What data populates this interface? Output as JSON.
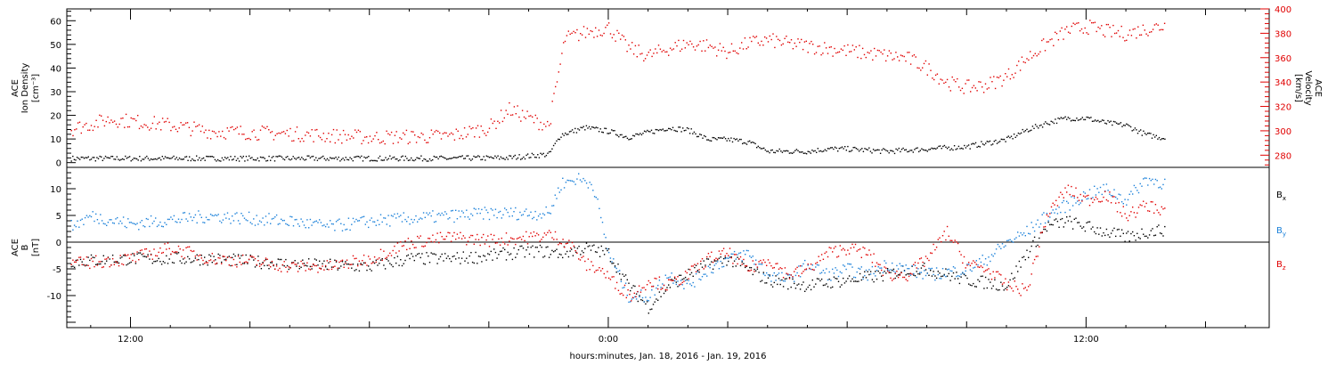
{
  "chart_data": [
    {
      "type": "scatter",
      "panel": "top",
      "ylabel_lines": [
        "ACE",
        "Ion Density",
        "[cm⁻³]"
      ],
      "ylim": [
        -2,
        65
      ],
      "yticks": [
        0,
        10,
        20,
        30,
        40,
        50,
        60
      ],
      "ylabel_right_lines": [
        "ACE",
        "Velocity",
        "[km/s]"
      ],
      "ylim_right": [
        270,
        400
      ],
      "yticks_right": [
        280,
        300,
        320,
        340,
        360,
        380,
        400
      ],
      "right_axis_color": "#e00000",
      "density_color": "#000000",
      "density_points": [
        [
          -13.5,
          2
        ],
        [
          -12,
          2
        ],
        [
          -10,
          2
        ],
        [
          -8,
          2
        ],
        [
          -6,
          2
        ],
        [
          -4,
          2
        ],
        [
          -2.5,
          2.3
        ],
        [
          -1.5,
          3.8
        ],
        [
          -1.2,
          12
        ],
        [
          -0.6,
          15
        ],
        [
          0,
          13.5
        ],
        [
          0.5,
          11
        ],
        [
          1,
          13
        ],
        [
          1.5,
          15
        ],
        [
          2,
          14
        ],
        [
          2.5,
          10
        ],
        [
          3,
          10
        ],
        [
          3.5,
          9
        ],
        [
          4,
          5
        ],
        [
          5,
          5
        ],
        [
          5.5,
          6
        ],
        [
          6,
          6
        ],
        [
          7,
          5
        ],
        [
          8,
          6
        ],
        [
          9,
          7
        ],
        [
          10,
          10
        ],
        [
          10.5,
          14
        ],
        [
          11,
          17
        ],
        [
          11.5,
          19
        ],
        [
          12,
          19
        ],
        [
          12.5,
          17
        ],
        [
          13,
          16
        ],
        [
          13.5,
          12
        ],
        [
          14,
          10.5
        ]
      ],
      "velocity_color": "#e00000",
      "velocity_points": [
        [
          -13.5,
          302
        ],
        [
          -12.5,
          310
        ],
        [
          -11,
          305
        ],
        [
          -10,
          300
        ],
        [
          -8,
          298
        ],
        [
          -6,
          295
        ],
        [
          -4,
          296
        ],
        [
          -3,
          303
        ],
        [
          -2.5,
          318
        ],
        [
          -1.8,
          308
        ],
        [
          -1.5,
          305
        ],
        [
          -1.1,
          376
        ],
        [
          -0.5,
          382
        ],
        [
          0,
          385
        ],
        [
          0.5,
          368
        ],
        [
          1,
          362
        ],
        [
          1.5,
          368
        ],
        [
          2,
          372
        ],
        [
          2.5,
          370
        ],
        [
          3,
          365
        ],
        [
          3.5,
          372
        ],
        [
          4,
          375
        ],
        [
          4.5,
          372
        ],
        [
          5,
          370
        ],
        [
          5.5,
          368
        ],
        [
          6,
          366
        ],
        [
          6.5,
          364
        ],
        [
          7,
          362
        ],
        [
          7.5,
          360
        ],
        [
          8,
          352
        ],
        [
          8.5,
          340
        ],
        [
          9,
          336
        ],
        [
          9.5,
          338
        ],
        [
          10,
          345
        ],
        [
          10.5,
          360
        ],
        [
          11,
          372
        ],
        [
          11.5,
          382
        ],
        [
          12,
          386
        ],
        [
          12.5,
          382
        ],
        [
          13,
          380
        ],
        [
          13.5,
          384
        ],
        [
          14,
          387
        ]
      ]
    },
    {
      "type": "scatter",
      "panel": "bottom",
      "ylabel_lines": [
        "ACE",
        "B",
        "[nT]"
      ],
      "ylim": [
        -16,
        14
      ],
      "yticks": [
        -10,
        -5,
        0,
        5,
        10
      ],
      "zero_line": true,
      "xlabel": "hours:minutes, Jan. 18, 2016 - Jan. 19, 2016",
      "xlim": [
        -13.6,
        16.6
      ],
      "xticks": [
        -12,
        0,
        12
      ],
      "xtick_labels": [
        "12:00",
        "0:00",
        "12:00"
      ],
      "series": [
        {
          "name": "Bx",
          "subscript": "x",
          "color": "#000000",
          "points": [
            [
              -13.5,
              -3.5
            ],
            [
              -12,
              -3
            ],
            [
              -10,
              -3
            ],
            [
              -8,
              -4
            ],
            [
              -6,
              -4.5
            ],
            [
              -5,
              -3
            ],
            [
              -4,
              -3
            ],
            [
              -3,
              -2.5
            ],
            [
              -2.5,
              -2
            ],
            [
              -1.8,
              -1.5
            ],
            [
              -1.2,
              -2
            ],
            [
              -0.6,
              -1
            ],
            [
              0,
              -2
            ],
            [
              0.5,
              -8
            ],
            [
              1,
              -12
            ],
            [
              1.5,
              -8
            ],
            [
              2,
              -6
            ],
            [
              2.5,
              -4
            ],
            [
              3,
              -3
            ],
            [
              3.5,
              -5
            ],
            [
              4,
              -7
            ],
            [
              5,
              -8
            ],
            [
              6,
              -7
            ],
            [
              7,
              -6
            ],
            [
              7.5,
              -5
            ],
            [
              8,
              -5
            ],
            [
              9,
              -7
            ],
            [
              10,
              -8
            ],
            [
              10.5,
              -2
            ],
            [
              11,
              3
            ],
            [
              11.5,
              4
            ],
            [
              12,
              3
            ],
            [
              12.5,
              2
            ],
            [
              13,
              1
            ],
            [
              13.5,
              2
            ],
            [
              14,
              2.5
            ]
          ]
        },
        {
          "name": "By",
          "subscript": "y",
          "color": "#1a80d9",
          "points": [
            [
              -13.5,
              3
            ],
            [
              -13,
              5
            ],
            [
              -12,
              3.5
            ],
            [
              -10,
              5
            ],
            [
              -9,
              4.5
            ],
            [
              -8,
              4
            ],
            [
              -7,
              3
            ],
            [
              -6,
              4
            ],
            [
              -5,
              4.5
            ],
            [
              -3,
              5.5
            ],
            [
              -2,
              5.5
            ],
            [
              -1.5,
              5.5
            ],
            [
              -1.2,
              11
            ],
            [
              -0.8,
              12
            ],
            [
              -0.4,
              11
            ],
            [
              0,
              -2
            ],
            [
              0.5,
              -10
            ],
            [
              1,
              -10
            ],
            [
              1.5,
              -6
            ],
            [
              2,
              -8
            ],
            [
              2.5,
              -5
            ],
            [
              3,
              -3
            ],
            [
              3.5,
              -2
            ],
            [
              4,
              -6
            ],
            [
              4.5,
              -7
            ],
            [
              5,
              -4
            ],
            [
              5.5,
              -6
            ],
            [
              6,
              -5
            ],
            [
              6.5,
              -6
            ],
            [
              7,
              -4
            ],
            [
              8,
              -6
            ],
            [
              9,
              -5
            ],
            [
              9.5,
              -3
            ],
            [
              10,
              0
            ],
            [
              10.5,
              2
            ],
            [
              11,
              5
            ],
            [
              11.5,
              7
            ],
            [
              12,
              9
            ],
            [
              12.5,
              10
            ],
            [
              13,
              8
            ],
            [
              13.5,
              12
            ],
            [
              14,
              11
            ]
          ]
        },
        {
          "name": "Bz",
          "subscript": "z",
          "color": "#e00000",
          "points": [
            [
              -13.5,
              -4
            ],
            [
              -12,
              -3
            ],
            [
              -11,
              -1
            ],
            [
              -10,
              -3
            ],
            [
              -9,
              -3.5
            ],
            [
              -8,
              -4.5
            ],
            [
              -7,
              -4.5
            ],
            [
              -6,
              -3
            ],
            [
              -5,
              0
            ],
            [
              -4,
              1
            ],
            [
              -3,
              0.5
            ],
            [
              -2,
              1
            ],
            [
              -1.5,
              1.5
            ],
            [
              -1,
              0
            ],
            [
              -0.6,
              -4
            ],
            [
              -0.2,
              -5
            ],
            [
              0.2,
              -8
            ],
            [
              0.6,
              -10
            ],
            [
              1,
              -7
            ],
            [
              1.5,
              -8
            ],
            [
              2,
              -6
            ],
            [
              2.5,
              -3
            ],
            [
              3,
              -2
            ],
            [
              3.5,
              -5
            ],
            [
              4,
              -3
            ],
            [
              4.5,
              -6
            ],
            [
              5,
              -5
            ],
            [
              5.5,
              -2
            ],
            [
              6,
              -1
            ],
            [
              6.5,
              -2
            ],
            [
              7,
              -6
            ],
            [
              7.5,
              -6
            ],
            [
              8,
              -3
            ],
            [
              8.5,
              2
            ],
            [
              9,
              -4
            ],
            [
              9.5,
              -5
            ],
            [
              10,
              -8
            ],
            [
              10.5,
              -9
            ],
            [
              11,
              5
            ],
            [
              11.5,
              10
            ],
            [
              12,
              8
            ],
            [
              12.5,
              9
            ],
            [
              13,
              5
            ],
            [
              13.5,
              7
            ],
            [
              14,
              6
            ]
          ]
        }
      ]
    }
  ]
}
